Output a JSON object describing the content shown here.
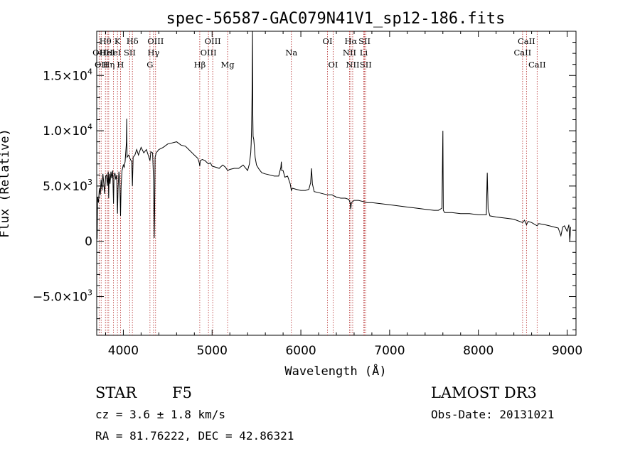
{
  "chart_data": {
    "type": "line",
    "title": "spec-56587-GAC079N41V1_sp12-186.fits",
    "xlabel": "Wavelength (Å)",
    "ylabel": "Flux (Relative)",
    "xlim": [
      3700,
      9100
    ],
    "ylim": [
      -8500,
      19000
    ],
    "x_ticks": [
      {
        "value": 4000,
        "label": "4000"
      },
      {
        "value": 5000,
        "label": "5000"
      },
      {
        "value": 6000,
        "label": "6000"
      },
      {
        "value": 7000,
        "label": "7000"
      },
      {
        "value": 8000,
        "label": "8000"
      },
      {
        "value": 9000,
        "label": "9000"
      }
    ],
    "y_ticks": [
      {
        "value": -5000,
        "mant": "−5.0×10",
        "exp": "3"
      },
      {
        "value": 0,
        "mant": "0",
        "exp": ""
      },
      {
        "value": 5000,
        "mant": "5.0×10",
        "exp": "3"
      },
      {
        "value": 10000,
        "mant": "1.0×10",
        "exp": "4"
      },
      {
        "value": 15000,
        "mant": "1.5×10",
        "exp": "4"
      }
    ],
    "line_color": "#000000",
    "marker_color": "#b22222",
    "spectral_lines": [
      {
        "wavelength": 3727,
        "label": "OII",
        "row": 2
      },
      {
        "wavelength": 3750,
        "label": "OII",
        "row": 3
      },
      {
        "wavelength": 3798,
        "label": "Hθ",
        "row": 1
      },
      {
        "wavelength": 3820,
        "label": "HeI",
        "row": 2
      },
      {
        "wavelength": 3835,
        "label": "Hη",
        "row": 3
      },
      {
        "wavelength": 3889,
        "label": "HeI",
        "row": 2
      },
      {
        "wavelength": 3934,
        "label": "K",
        "row": 1
      },
      {
        "wavelength": 3968,
        "label": "H",
        "row": 3
      },
      {
        "wavelength": 4072,
        "label": "SII",
        "row": 2
      },
      {
        "wavelength": 4102,
        "label": "Hδ",
        "row": 1
      },
      {
        "wavelength": 4300,
        "label": "G",
        "row": 3
      },
      {
        "wavelength": 4340,
        "label": "Hγ",
        "row": 2
      },
      {
        "wavelength": 4363,
        "label": "OIII",
        "row": 1
      },
      {
        "wavelength": 4861,
        "label": "Hβ",
        "row": 3
      },
      {
        "wavelength": 4959,
        "label": "OIII",
        "row": 2
      },
      {
        "wavelength": 5007,
        "label": "OIII",
        "row": 1
      },
      {
        "wavelength": 5175,
        "label": "Mg",
        "row": 3
      },
      {
        "wavelength": 5893,
        "label": "Na",
        "row": 2
      },
      {
        "wavelength": 6300,
        "label": "OI",
        "row": 1
      },
      {
        "wavelength": 6364,
        "label": "OI",
        "row": 3
      },
      {
        "wavelength": 6548,
        "label": "NII",
        "row": 2
      },
      {
        "wavelength": 6563,
        "label": "Hα",
        "row": 1
      },
      {
        "wavelength": 6584,
        "label": "NII",
        "row": 3
      },
      {
        "wavelength": 6708,
        "label": "Li",
        "row": 2
      },
      {
        "wavelength": 6717,
        "label": "SII",
        "row": 1
      },
      {
        "wavelength": 6731,
        "label": "SII",
        "row": 3
      },
      {
        "wavelength": 8498,
        "label": "CaII",
        "row": 2
      },
      {
        "wavelength": 8542,
        "label": "CaII",
        "row": 1
      },
      {
        "wavelength": 8662,
        "label": "CaII",
        "row": 3
      }
    ],
    "spectrum": [
      [
        3700,
        1000
      ],
      [
        3705,
        200
      ],
      [
        3710,
        4000
      ],
      [
        3720,
        3500
      ],
      [
        3730,
        4800
      ],
      [
        3740,
        4200
      ],
      [
        3750,
        5600
      ],
      [
        3760,
        4600
      ],
      [
        3770,
        6100
      ],
      [
        3780,
        5200
      ],
      [
        3790,
        4300
      ],
      [
        3800,
        5900
      ],
      [
        3810,
        6000
      ],
      [
        3820,
        5000
      ],
      [
        3830,
        6300
      ],
      [
        3835,
        3900
      ],
      [
        3840,
        6100
      ],
      [
        3850,
        5200
      ],
      [
        3860,
        6300
      ],
      [
        3870,
        5700
      ],
      [
        3880,
        6400
      ],
      [
        3889,
        3400
      ],
      [
        3895,
        5900
      ],
      [
        3905,
        6200
      ],
      [
        3915,
        5600
      ],
      [
        3925,
        6000
      ],
      [
        3934,
        2500
      ],
      [
        3940,
        4800
      ],
      [
        3950,
        6300
      ],
      [
        3960,
        5400
      ],
      [
        3968,
        2300
      ],
      [
        3975,
        5000
      ],
      [
        3985,
        6400
      ],
      [
        4000,
        6900
      ],
      [
        4010,
        6700
      ],
      [
        4020,
        7200
      ],
      [
        4030,
        8400
      ],
      [
        4035,
        9000
      ],
      [
        4038,
        11100
      ],
      [
        4042,
        7600
      ],
      [
        4050,
        7700
      ],
      [
        4060,
        7800
      ],
      [
        4080,
        7400
      ],
      [
        4095,
        7200
      ],
      [
        4102,
        5000
      ],
      [
        4110,
        7600
      ],
      [
        4130,
        7800
      ],
      [
        4150,
        8300
      ],
      [
        4170,
        7800
      ],
      [
        4200,
        8500
      ],
      [
        4230,
        8000
      ],
      [
        4260,
        8300
      ],
      [
        4300,
        7300
      ],
      [
        4310,
        8100
      ],
      [
        4330,
        8000
      ],
      [
        4340,
        5600
      ],
      [
        4345,
        2600
      ],
      [
        4348,
        300
      ],
      [
        4352,
        2600
      ],
      [
        4358,
        7600
      ],
      [
        4370,
        8000
      ],
      [
        4400,
        8300
      ],
      [
        4450,
        8500
      ],
      [
        4500,
        8800
      ],
      [
        4550,
        8900
      ],
      [
        4600,
        9000
      ],
      [
        4650,
        8700
      ],
      [
        4700,
        8600
      ],
      [
        4750,
        8200
      ],
      [
        4800,
        7800
      ],
      [
        4840,
        7500
      ],
      [
        4855,
        7100
      ],
      [
        4861,
        6800
      ],
      [
        4867,
        7300
      ],
      [
        4890,
        7400
      ],
      [
        4920,
        7300
      ],
      [
        4959,
        7000
      ],
      [
        4980,
        7100
      ],
      [
        5000,
        6800
      ],
      [
        5040,
        6700
      ],
      [
        5080,
        6600
      ],
      [
        5120,
        6900
      ],
      [
        5150,
        6700
      ],
      [
        5175,
        6400
      ],
      [
        5200,
        6500
      ],
      [
        5250,
        6600
      ],
      [
        5300,
        6600
      ],
      [
        5350,
        6900
      ],
      [
        5400,
        6400
      ],
      [
        5420,
        7000
      ],
      [
        5435,
        8000
      ],
      [
        5440,
        8800
      ],
      [
        5445,
        10300
      ],
      [
        5450,
        13000
      ],
      [
        5455,
        19000
      ],
      [
        5458,
        12000
      ],
      [
        5462,
        9500
      ],
      [
        5470,
        9200
      ],
      [
        5485,
        7600
      ],
      [
        5500,
        6900
      ],
      [
        5530,
        6500
      ],
      [
        5560,
        6200
      ],
      [
        5600,
        6100
      ],
      [
        5650,
        6000
      ],
      [
        5700,
        5900
      ],
      [
        5750,
        5900
      ],
      [
        5775,
        6700
      ],
      [
        5780,
        7200
      ],
      [
        5785,
        6400
      ],
      [
        5800,
        6400
      ],
      [
        5820,
        5800
      ],
      [
        5850,
        5900
      ],
      [
        5880,
        5200
      ],
      [
        5893,
        4600
      ],
      [
        5905,
        4800
      ],
      [
        5950,
        4700
      ],
      [
        6000,
        4600
      ],
      [
        6050,
        4600
      ],
      [
        6090,
        4700
      ],
      [
        6110,
        5300
      ],
      [
        6120,
        6600
      ],
      [
        6130,
        5200
      ],
      [
        6150,
        4500
      ],
      [
        6200,
        4400
      ],
      [
        6250,
        4300
      ],
      [
        6300,
        4200
      ],
      [
        6350,
        4200
      ],
      [
        6400,
        4000
      ],
      [
        6450,
        3900
      ],
      [
        6500,
        3900
      ],
      [
        6540,
        3800
      ],
      [
        6555,
        3500
      ],
      [
        6563,
        2900
      ],
      [
        6570,
        3500
      ],
      [
        6600,
        3700
      ],
      [
        6650,
        3700
      ],
      [
        6700,
        3600
      ],
      [
        6750,
        3500
      ],
      [
        6800,
        3500
      ],
      [
        6900,
        3400
      ],
      [
        7000,
        3300
      ],
      [
        7100,
        3200
      ],
      [
        7200,
        3100
      ],
      [
        7300,
        3000
      ],
      [
        7400,
        2900
      ],
      [
        7500,
        2800
      ],
      [
        7550,
        2800
      ],
      [
        7590,
        3000
      ],
      [
        7600,
        10000
      ],
      [
        7605,
        2800
      ],
      [
        7620,
        2600
      ],
      [
        7700,
        2600
      ],
      [
        7800,
        2500
      ],
      [
        7900,
        2500
      ],
      [
        8000,
        2400
      ],
      [
        8090,
        2400
      ],
      [
        8100,
        6200
      ],
      [
        8110,
        2900
      ],
      [
        8130,
        2300
      ],
      [
        8200,
        2200
      ],
      [
        8300,
        2100
      ],
      [
        8400,
        2000
      ],
      [
        8498,
        1700
      ],
      [
        8520,
        1900
      ],
      [
        8542,
        1500
      ],
      [
        8560,
        1800
      ],
      [
        8600,
        1700
      ],
      [
        8662,
        1400
      ],
      [
        8680,
        1600
      ],
      [
        8750,
        1500
      ],
      [
        8800,
        1400
      ],
      [
        8850,
        1300
      ],
      [
        8900,
        1200
      ],
      [
        8930,
        500
      ],
      [
        8950,
        1300
      ],
      [
        8970,
        1400
      ],
      [
        9000,
        900
      ],
      [
        9020,
        1500
      ],
      [
        9030,
        0
      ],
      [
        9040,
        1300
      ]
    ]
  },
  "info": {
    "object_class": "STAR",
    "subclass": "F5",
    "survey": "LAMOST DR3",
    "redshift": "cz = 3.6 ± 1.8 km/s",
    "obs_date": "Obs-Date: 20131021",
    "coords": "RA =  81.76222, DEC =  42.86321"
  }
}
